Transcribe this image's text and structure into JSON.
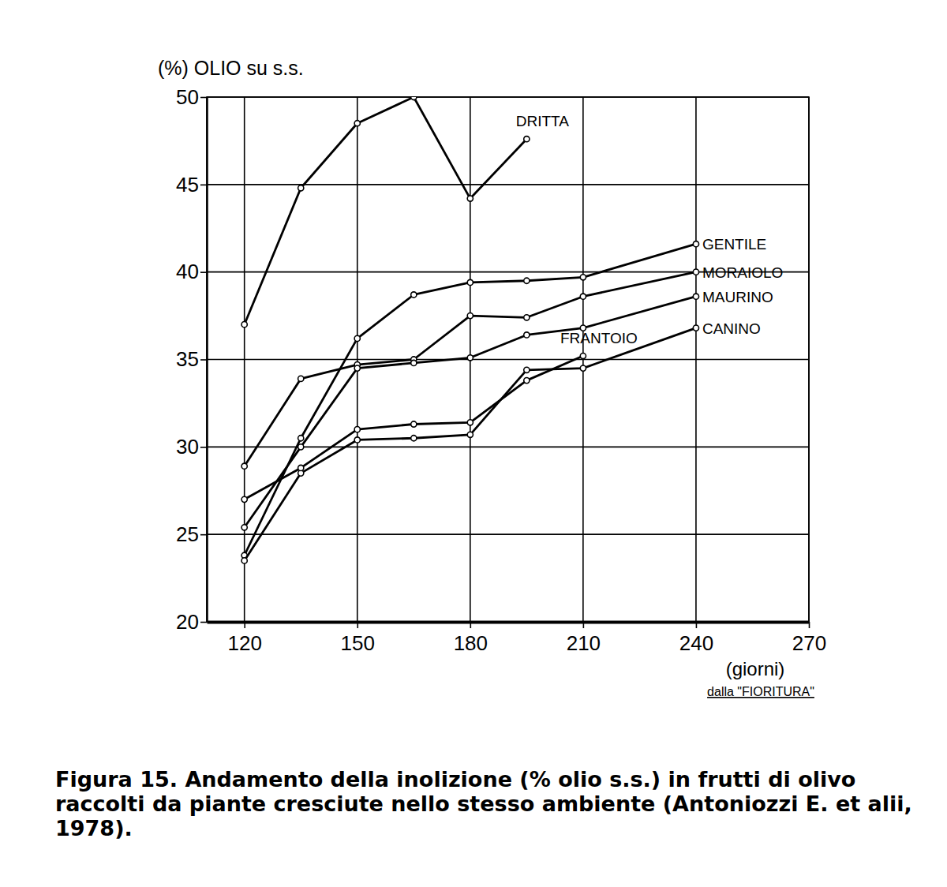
{
  "chart_data": {
    "type": "line",
    "title": "Figura 15. Andamento della inolizione (% olio s.s.) in frutti di olivo raccolti da piante cresciute nello stesso ambiente (Antoniozzi E. et alii, 1978).",
    "y_label": "(%) OLIO su s.s.",
    "x_label": "(giorni)",
    "annotations": [
      "dalla \"FIORITURA\""
    ],
    "x": [
      120,
      135,
      150,
      165,
      180,
      195,
      210,
      240
    ],
    "xlim": [
      110,
      270
    ],
    "xticks": [
      120,
      150,
      180,
      210,
      240,
      270
    ],
    "ylim": [
      20,
      50
    ],
    "yticks": [
      20,
      25,
      30,
      35,
      40,
      45,
      50
    ],
    "grid": true,
    "series": [
      {
        "name": "DRITTA",
        "color": "#000000",
        "marker": "circle",
        "line_style": "solid",
        "values": [
          37.0,
          44.8,
          48.5,
          50.0,
          44.2,
          47.6,
          null,
          null
        ]
      },
      {
        "name": "GENTILE",
        "color": "#000000",
        "marker": "circle",
        "line_style": "solid",
        "values": [
          23.8,
          30.5,
          36.2,
          38.7,
          39.4,
          39.5,
          39.7,
          41.6
        ]
      },
      {
        "name": "MORAIOLO",
        "color": "#000000",
        "marker": "circle",
        "line_style": "solid",
        "values": [
          28.9,
          33.9,
          34.7,
          35.0,
          37.5,
          37.4,
          38.6,
          40.0
        ]
      },
      {
        "name": "MAURINO",
        "color": "#000000",
        "marker": "circle",
        "line_style": "solid",
        "values": [
          25.4,
          30.0,
          34.5,
          34.8,
          35.1,
          36.4,
          36.8,
          38.6
        ]
      },
      {
        "name": "CANINO",
        "color": "#000000",
        "marker": "circle",
        "line_style": "solid",
        "values": [
          23.5,
          28.5,
          30.4,
          30.5,
          30.7,
          34.4,
          34.5,
          36.8
        ]
      },
      {
        "name": "FRANTOIO",
        "color": "#000000",
        "marker": "circle",
        "line_style": "solid",
        "values": [
          27.0,
          28.8,
          31.0,
          31.3,
          31.4,
          33.8,
          35.2,
          null
        ]
      }
    ]
  }
}
